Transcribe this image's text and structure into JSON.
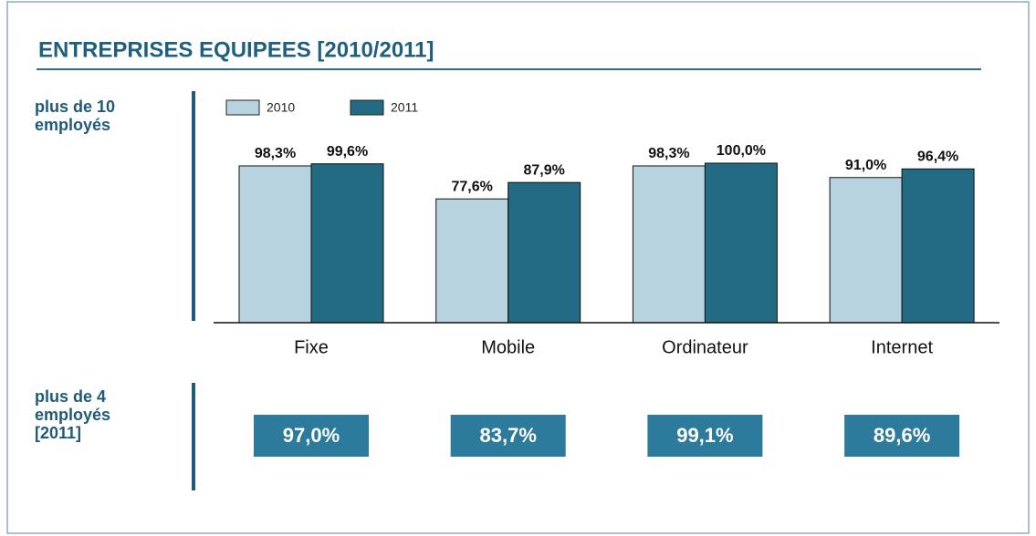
{
  "chart_data": {
    "type": "bar",
    "title": "ENTREPRISES EQUIPEES [2010/2011]",
    "row_label": [
      "plus de 10",
      "employés"
    ],
    "categories": [
      "Fixe",
      "Mobile",
      "Ordinateur",
      "Internet"
    ],
    "series": [
      {
        "name": "2010",
        "color": "#b7d3df",
        "values": [
          98.3,
          77.6,
          98.3,
          91.0
        ],
        "value_labels": [
          "98,3%",
          "77,6%",
          "98,3%",
          "91,0%"
        ]
      },
      {
        "name": "2011",
        "color": "#236a85",
        "values": [
          99.6,
          87.9,
          100.0,
          96.4
        ],
        "value_labels": [
          "99,6%",
          "87,9%",
          "100,0%",
          "96,4%"
        ]
      }
    ],
    "ylim": [
      0,
      100
    ]
  },
  "summary": {
    "label": [
      "plus de 4",
      "employés",
      "[2011]"
    ],
    "items": [
      "97,0%",
      "83,7%",
      "99,1%",
      "89,6%"
    ],
    "color": "#2c7a9c"
  }
}
